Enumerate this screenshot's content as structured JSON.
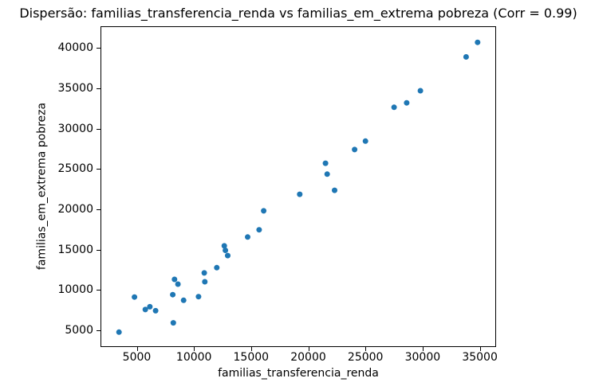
{
  "chart_data": {
    "type": "scatter",
    "title": "Dispersão: familias_transferencia_renda vs familias_em_extrema pobreza (Corr = 0.99)",
    "xlabel": "familias_transferencia_renda",
    "ylabel": "familias_em_extrema pobreza",
    "correlation": "0.99",
    "xlim": [
      1900,
      36350
    ],
    "ylim": [
      3000,
      42600
    ],
    "x_ticks": [
      5000,
      10000,
      15000,
      20000,
      25000,
      30000,
      35000
    ],
    "y_ticks": [
      5000,
      10000,
      15000,
      20000,
      25000,
      30000,
      35000,
      40000
    ],
    "grid": false,
    "legend": "none",
    "marker_color": "#1f77b4",
    "marker_radius_px": 3.5,
    "spine_color": "#000000",
    "background_color": "#ffffff",
    "points": [
      [
        3450,
        4750
      ],
      [
        4800,
        9100
      ],
      [
        5750,
        7550
      ],
      [
        6150,
        7900
      ],
      [
        6650,
        7400
      ],
      [
        8150,
        9400
      ],
      [
        8200,
        5900
      ],
      [
        8300,
        11300
      ],
      [
        8600,
        10700
      ],
      [
        9100,
        8700
      ],
      [
        10400,
        9150
      ],
      [
        10900,
        12100
      ],
      [
        10950,
        11000
      ],
      [
        12000,
        12750
      ],
      [
        12650,
        15450
      ],
      [
        12750,
        14900
      ],
      [
        12950,
        14250
      ],
      [
        14700,
        16550
      ],
      [
        15700,
        17450
      ],
      [
        16100,
        19800
      ],
      [
        19250,
        21850
      ],
      [
        21500,
        25700
      ],
      [
        21650,
        24350
      ],
      [
        22300,
        22350
      ],
      [
        24050,
        27400
      ],
      [
        25000,
        28450
      ],
      [
        27500,
        32650
      ],
      [
        28600,
        33200
      ],
      [
        29800,
        34700
      ],
      [
        33800,
        38900
      ],
      [
        34800,
        40700
      ]
    ]
  }
}
